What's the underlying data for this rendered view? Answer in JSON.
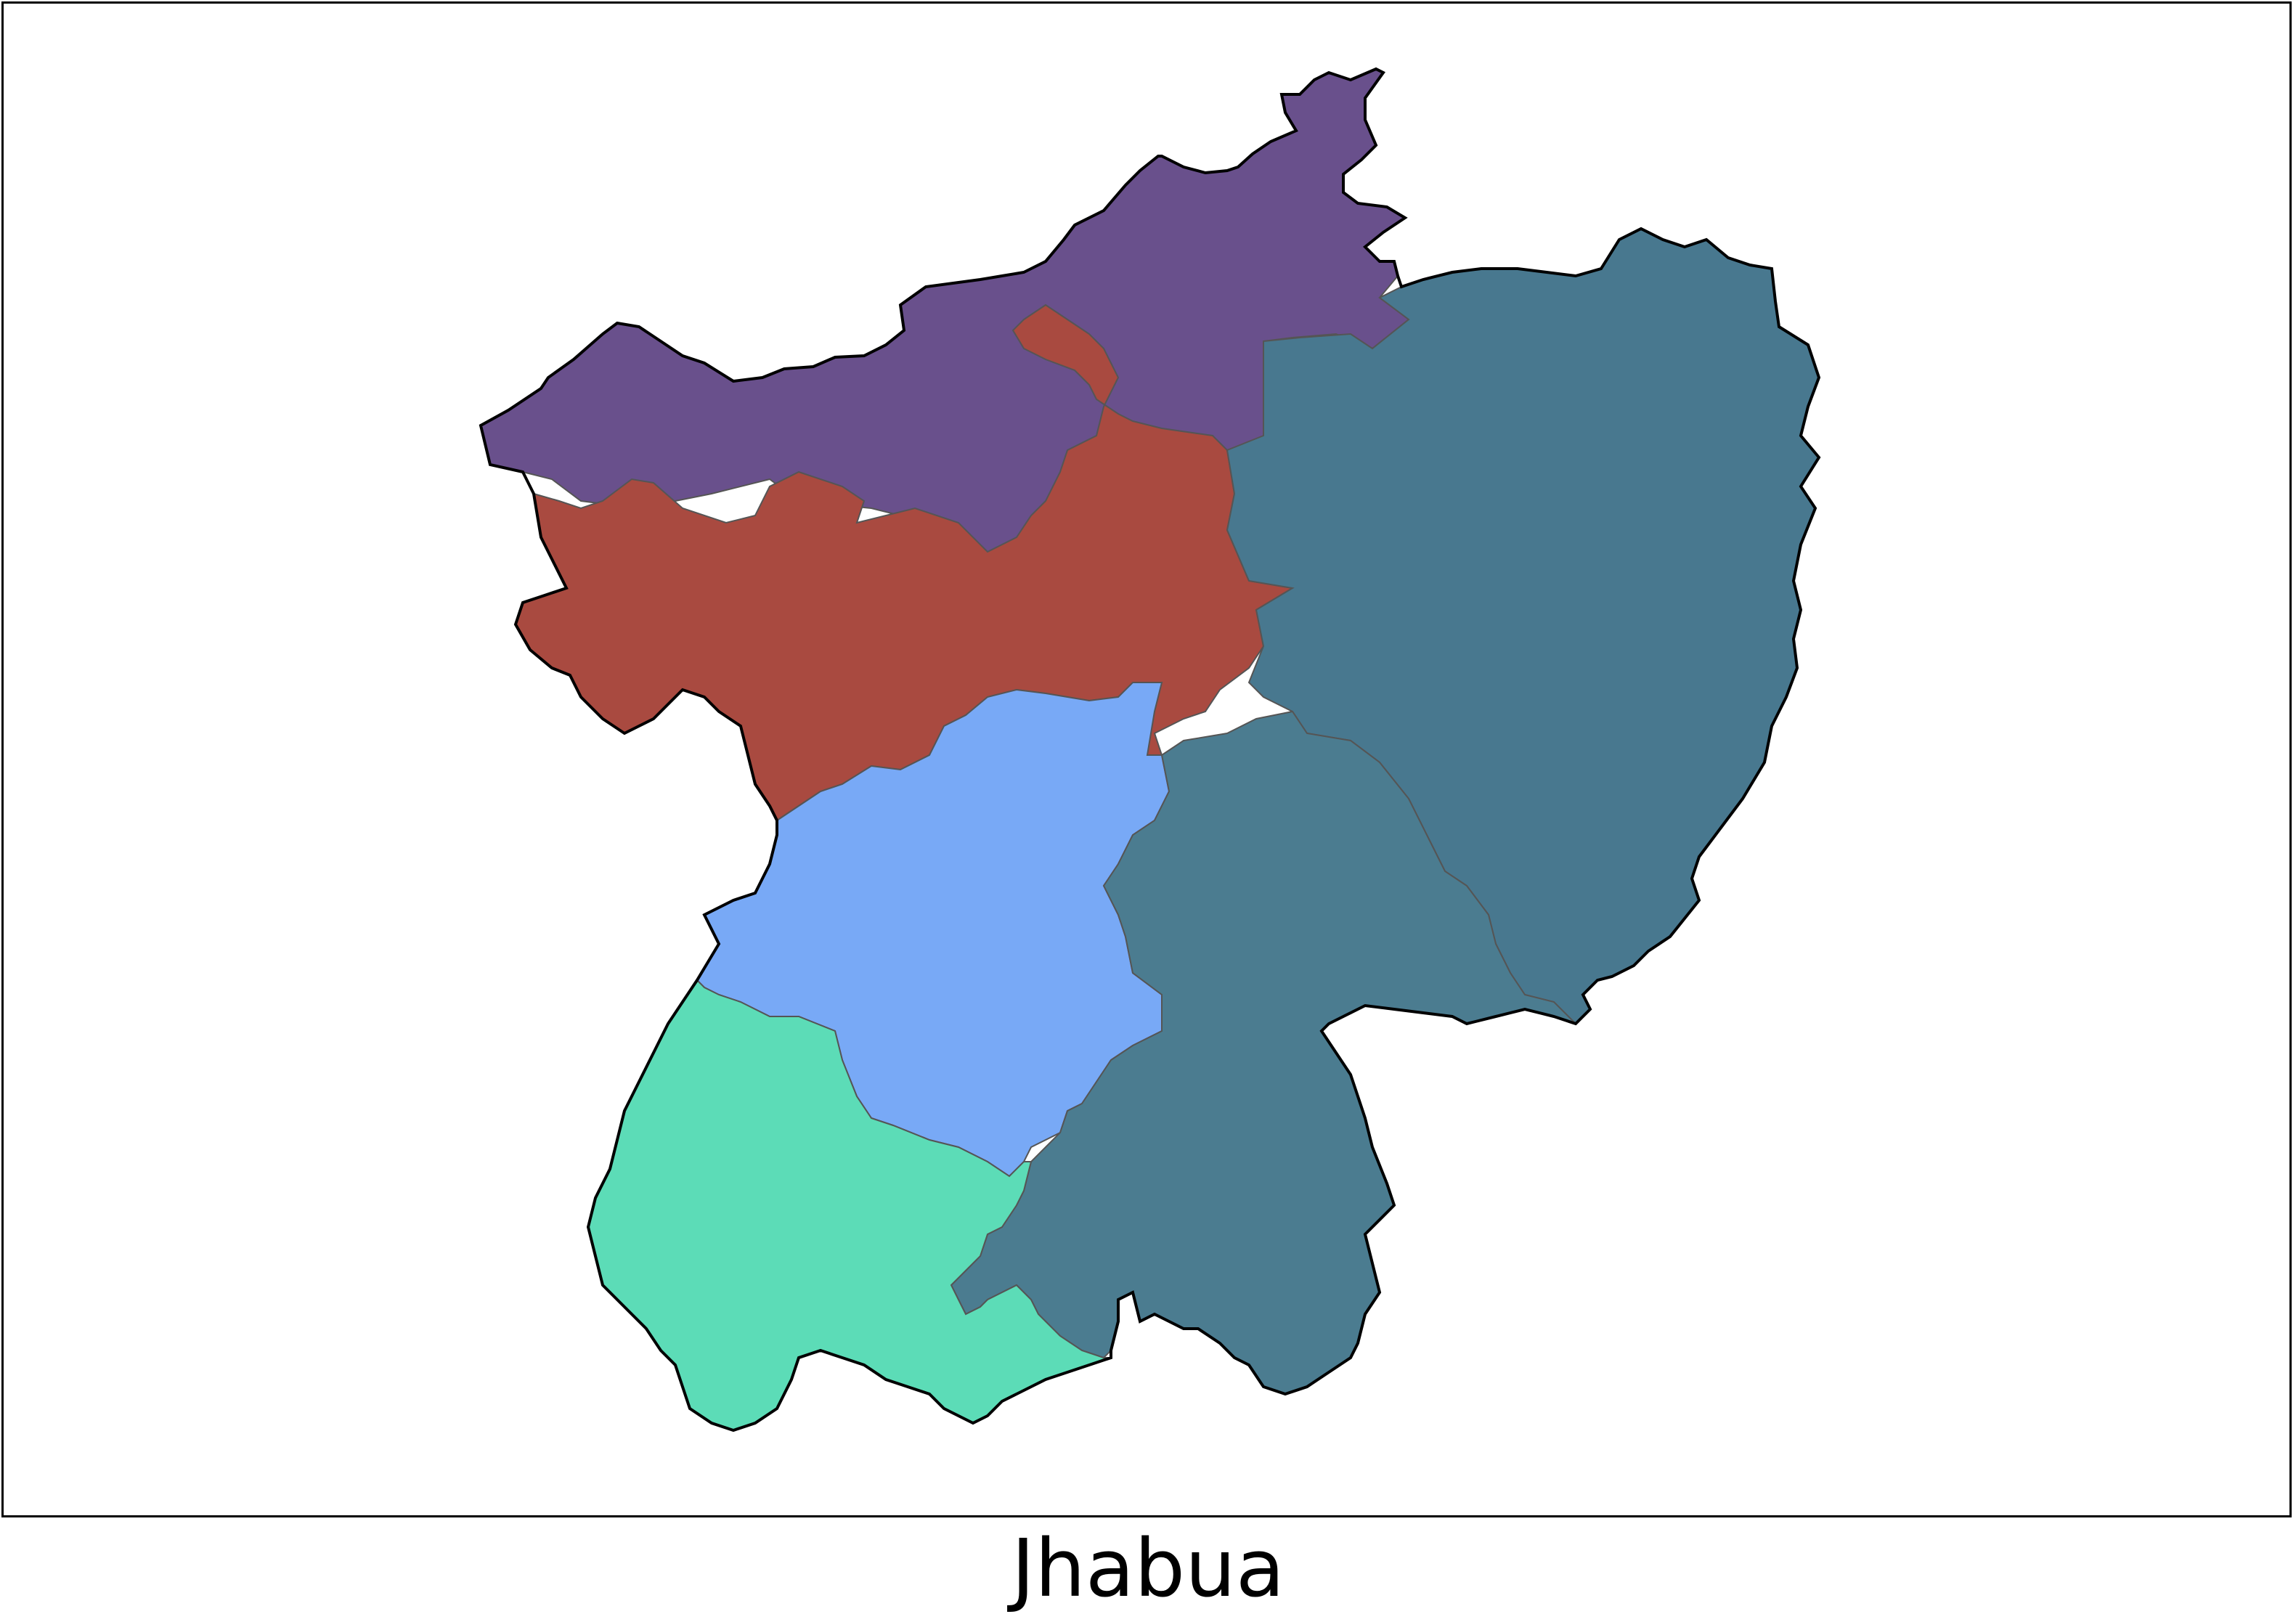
{
  "map": {
    "caption": "Jhabua",
    "fill_colors": {
      "north": "#69508c",
      "central": "#a94a40",
      "east": "#48788f",
      "west": "#78a9f6",
      "southeast": "#4b7c90",
      "southwest": "#5cdcb7",
      "outline": "#000000",
      "internal_border": "#555555"
    }
  }
}
